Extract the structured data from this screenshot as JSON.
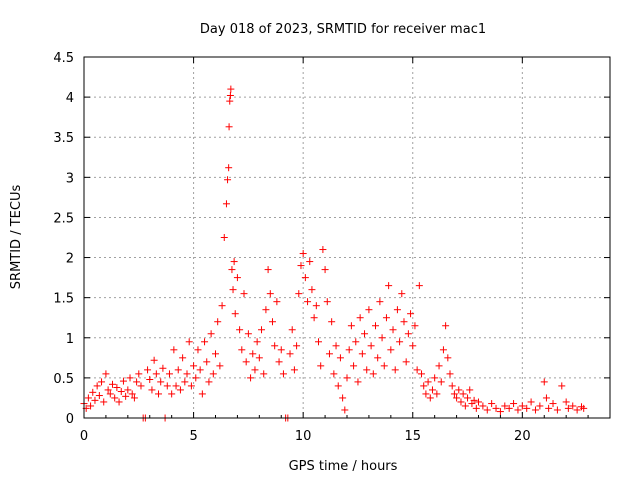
{
  "chart_data": {
    "type": "scatter",
    "title": "Day 018 of 2023, SRMTID for receiver mac1",
    "xlabel": "GPS time / hours",
    "ylabel": "SRMTID / TECUs",
    "xlim": [
      0,
      24
    ],
    "ylim": [
      0,
      4.5
    ],
    "xticks": [
      0,
      5,
      10,
      15,
      20
    ],
    "yticks": [
      0,
      0.5,
      1,
      1.5,
      2,
      2.5,
      3,
      3.5,
      4,
      4.5
    ],
    "xtick_labels": [
      "0",
      "5",
      "10",
      "15",
      "20"
    ],
    "ytick_labels": [
      "0",
      "0.5",
      "1",
      "1.5",
      "2",
      "2.5",
      "3",
      "3.5",
      "4",
      "4.5"
    ],
    "grid": true,
    "marker": "+",
    "color": "#ff0000",
    "series": [
      {
        "name": "mac1",
        "points": [
          [
            0.0,
            0.18
          ],
          [
            0.1,
            0.12
          ],
          [
            0.2,
            0.25
          ],
          [
            0.3,
            0.15
          ],
          [
            0.4,
            0.32
          ],
          [
            0.5,
            0.22
          ],
          [
            0.6,
            0.4
          ],
          [
            0.7,
            0.28
          ],
          [
            0.8,
            0.45
          ],
          [
            0.9,
            0.2
          ],
          [
            1.0,
            0.55
          ],
          [
            1.1,
            0.35
          ],
          [
            1.2,
            0.3
          ],
          [
            1.3,
            0.42
          ],
          [
            1.4,
            0.25
          ],
          [
            1.5,
            0.38
          ],
          [
            1.6,
            0.2
          ],
          [
            1.7,
            0.33
          ],
          [
            1.8,
            0.46
          ],
          [
            1.9,
            0.27
          ],
          [
            2.0,
            0.35
          ],
          [
            2.1,
            0.5
          ],
          [
            2.2,
            0.3
          ],
          [
            2.3,
            0.25
          ],
          [
            2.4,
            0.45
          ],
          [
            2.5,
            0.55
          ],
          [
            2.6,
            0.4
          ],
          [
            2.7,
            0.0
          ],
          [
            2.8,
            0.0
          ],
          [
            2.9,
            0.6
          ],
          [
            3.0,
            0.48
          ],
          [
            3.1,
            0.35
          ],
          [
            3.2,
            0.72
          ],
          [
            3.3,
            0.55
          ],
          [
            3.4,
            0.3
          ],
          [
            3.5,
            0.45
          ],
          [
            3.6,
            0.62
          ],
          [
            3.7,
            0.0
          ],
          [
            3.8,
            0.4
          ],
          [
            3.9,
            0.55
          ],
          [
            4.0,
            0.3
          ],
          [
            4.1,
            0.85
          ],
          [
            4.2,
            0.4
          ],
          [
            4.3,
            0.6
          ],
          [
            4.4,
            0.35
          ],
          [
            4.5,
            0.75
          ],
          [
            4.6,
            0.45
          ],
          [
            4.7,
            0.55
          ],
          [
            4.8,
            0.95
          ],
          [
            4.9,
            0.4
          ],
          [
            5.0,
            0.65
          ],
          [
            5.1,
            0.5
          ],
          [
            5.2,
            0.85
          ],
          [
            5.3,
            0.6
          ],
          [
            5.4,
            0.3
          ],
          [
            5.5,
            0.95
          ],
          [
            5.6,
            0.7
          ],
          [
            5.7,
            0.45
          ],
          [
            5.8,
            1.05
          ],
          [
            5.9,
            0.55
          ],
          [
            6.0,
            0.8
          ],
          [
            6.1,
            1.2
          ],
          [
            6.2,
            0.65
          ],
          [
            6.3,
            1.4
          ],
          [
            6.4,
            2.25
          ],
          [
            6.5,
            2.67
          ],
          [
            6.55,
            2.97
          ],
          [
            6.6,
            3.12
          ],
          [
            6.62,
            3.63
          ],
          [
            6.65,
            3.95
          ],
          [
            6.68,
            4.02
          ],
          [
            6.7,
            4.1
          ],
          [
            6.75,
            1.85
          ],
          [
            6.8,
            1.6
          ],
          [
            6.85,
            1.95
          ],
          [
            6.9,
            1.3
          ],
          [
            7.0,
            1.75
          ],
          [
            7.1,
            1.1
          ],
          [
            7.2,
            0.85
          ],
          [
            7.3,
            1.55
          ],
          [
            7.4,
            0.7
          ],
          [
            7.5,
            1.05
          ],
          [
            7.6,
            0.5
          ],
          [
            7.7,
            0.8
          ],
          [
            7.8,
            0.6
          ],
          [
            7.9,
            0.95
          ],
          [
            8.0,
            0.75
          ],
          [
            8.1,
            1.1
          ],
          [
            8.2,
            0.55
          ],
          [
            8.3,
            1.35
          ],
          [
            8.4,
            1.85
          ],
          [
            8.5,
            1.55
          ],
          [
            8.6,
            1.2
          ],
          [
            8.7,
            0.9
          ],
          [
            8.8,
            1.45
          ],
          [
            8.9,
            0.7
          ],
          [
            9.0,
            0.85
          ],
          [
            9.1,
            0.55
          ],
          [
            9.2,
            0.0
          ],
          [
            9.3,
            0.0
          ],
          [
            9.4,
            0.8
          ],
          [
            9.5,
            1.1
          ],
          [
            9.6,
            0.6
          ],
          [
            9.7,
            0.9
          ],
          [
            9.8,
            1.55
          ],
          [
            9.9,
            1.9
          ],
          [
            10.0,
            2.05
          ],
          [
            10.1,
            1.75
          ],
          [
            10.2,
            1.45
          ],
          [
            10.3,
            1.95
          ],
          [
            10.4,
            1.6
          ],
          [
            10.5,
            1.25
          ],
          [
            10.6,
            1.4
          ],
          [
            10.7,
            0.95
          ],
          [
            10.8,
            0.65
          ],
          [
            10.9,
            2.1
          ],
          [
            11.0,
            1.85
          ],
          [
            11.1,
            1.45
          ],
          [
            11.2,
            0.8
          ],
          [
            11.3,
            1.2
          ],
          [
            11.4,
            0.55
          ],
          [
            11.5,
            0.9
          ],
          [
            11.6,
            0.4
          ],
          [
            11.7,
            0.75
          ],
          [
            11.8,
            0.25
          ],
          [
            11.9,
            0.1
          ],
          [
            12.0,
            0.5
          ],
          [
            12.1,
            0.85
          ],
          [
            12.2,
            1.15
          ],
          [
            12.3,
            0.65
          ],
          [
            12.4,
            0.95
          ],
          [
            12.5,
            0.45
          ],
          [
            12.6,
            1.25
          ],
          [
            12.7,
            0.8
          ],
          [
            12.8,
            1.05
          ],
          [
            12.9,
            0.6
          ],
          [
            13.0,
            1.35
          ],
          [
            13.1,
            0.9
          ],
          [
            13.2,
            0.55
          ],
          [
            13.3,
            1.15
          ],
          [
            13.4,
            0.75
          ],
          [
            13.5,
            1.45
          ],
          [
            13.6,
            1.0
          ],
          [
            13.7,
            0.65
          ],
          [
            13.8,
            1.25
          ],
          [
            13.9,
            1.65
          ],
          [
            14.0,
            0.85
          ],
          [
            14.1,
            1.1
          ],
          [
            14.2,
            0.6
          ],
          [
            14.3,
            1.35
          ],
          [
            14.4,
            0.95
          ],
          [
            14.5,
            1.55
          ],
          [
            14.6,
            1.2
          ],
          [
            14.7,
            0.7
          ],
          [
            14.8,
            1.05
          ],
          [
            14.9,
            1.3
          ],
          [
            15.0,
            0.9
          ],
          [
            15.1,
            1.15
          ],
          [
            15.2,
            0.6
          ],
          [
            15.3,
            1.65
          ],
          [
            15.4,
            0.55
          ],
          [
            15.5,
            0.4
          ],
          [
            15.6,
            0.3
          ],
          [
            15.7,
            0.45
          ],
          [
            15.8,
            0.25
          ],
          [
            15.9,
            0.35
          ],
          [
            16.0,
            0.5
          ],
          [
            16.1,
            0.3
          ],
          [
            16.2,
            0.65
          ],
          [
            16.3,
            0.45
          ],
          [
            16.4,
            0.85
          ],
          [
            16.5,
            1.15
          ],
          [
            16.6,
            0.75
          ],
          [
            16.7,
            0.55
          ],
          [
            16.8,
            0.4
          ],
          [
            16.9,
            0.3
          ],
          [
            17.0,
            0.25
          ],
          [
            17.1,
            0.35
          ],
          [
            17.2,
            0.2
          ],
          [
            17.3,
            0.3
          ],
          [
            17.4,
            0.15
          ],
          [
            17.5,
            0.25
          ],
          [
            17.6,
            0.35
          ],
          [
            17.7,
            0.18
          ],
          [
            17.8,
            0.22
          ],
          [
            17.9,
            0.12
          ],
          [
            18.0,
            0.2
          ],
          [
            18.2,
            0.15
          ],
          [
            18.4,
            0.1
          ],
          [
            18.6,
            0.18
          ],
          [
            18.8,
            0.12
          ],
          [
            19.0,
            0.08
          ],
          [
            19.2,
            0.15
          ],
          [
            19.4,
            0.12
          ],
          [
            19.6,
            0.18
          ],
          [
            19.8,
            0.1
          ],
          [
            20.0,
            0.15
          ],
          [
            20.2,
            0.12
          ],
          [
            20.4,
            0.2
          ],
          [
            20.6,
            0.1
          ],
          [
            20.8,
            0.15
          ],
          [
            21.0,
            0.45
          ],
          [
            21.1,
            0.25
          ],
          [
            21.2,
            0.12
          ],
          [
            21.4,
            0.18
          ],
          [
            21.6,
            0.1
          ],
          [
            21.8,
            0.4
          ],
          [
            22.0,
            0.2
          ],
          [
            22.1,
            0.12
          ],
          [
            22.3,
            0.15
          ],
          [
            22.5,
            0.1
          ],
          [
            22.7,
            0.14
          ],
          [
            22.8,
            0.12
          ]
        ]
      }
    ]
  }
}
